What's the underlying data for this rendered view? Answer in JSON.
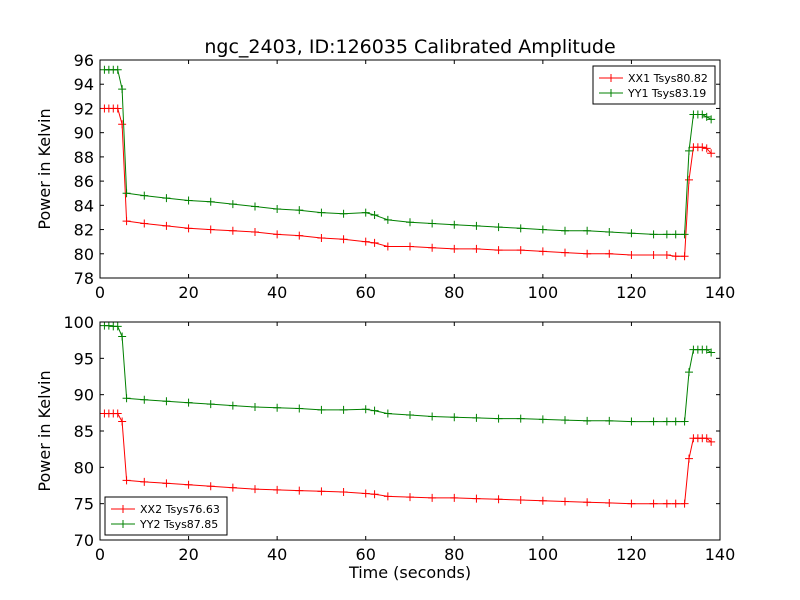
{
  "chart_data": [
    {
      "type": "line",
      "title": "ngc_2403, ID:126035 Calibrated Amplitude",
      "xlabel": "",
      "ylabel": "Power in Kelvin",
      "xlim": [
        0,
        140
      ],
      "ylim": [
        78,
        96
      ],
      "xticks": [
        0,
        20,
        40,
        60,
        80,
        100,
        120,
        140
      ],
      "yticks": [
        78,
        80,
        82,
        84,
        86,
        88,
        90,
        92,
        94,
        96
      ],
      "legend_position": "top-right",
      "grid": false,
      "series": [
        {
          "name": "XX1 Tsys80.82",
          "color": "#ff0000",
          "marker": "+",
          "x": [
            1,
            2,
            3,
            4,
            5,
            6,
            10,
            15,
            20,
            25,
            30,
            35,
            40,
            45,
            50,
            55,
            60,
            62,
            65,
            70,
            75,
            80,
            85,
            90,
            95,
            100,
            105,
            110,
            115,
            120,
            125,
            128,
            130,
            132,
            133,
            134,
            135,
            136,
            137,
            138
          ],
          "y": [
            92.0,
            92.0,
            92.0,
            92.0,
            90.7,
            82.7,
            82.5,
            82.3,
            82.1,
            82.0,
            81.9,
            81.8,
            81.6,
            81.5,
            81.3,
            81.2,
            81.0,
            80.9,
            80.6,
            80.6,
            80.5,
            80.4,
            80.4,
            80.3,
            80.3,
            80.2,
            80.1,
            80.0,
            80.0,
            79.9,
            79.9,
            79.9,
            79.8,
            79.8,
            86.1,
            88.8,
            88.8,
            88.8,
            88.7,
            88.3
          ]
        },
        {
          "name": "YY1 Tsys83.19",
          "color": "#008000",
          "marker": "+",
          "x": [
            1,
            2,
            3,
            4,
            5,
            6,
            10,
            15,
            20,
            25,
            30,
            35,
            40,
            45,
            50,
            55,
            60,
            62,
            65,
            70,
            75,
            80,
            85,
            90,
            95,
            100,
            105,
            110,
            115,
            120,
            125,
            128,
            130,
            132,
            133,
            134,
            135,
            136,
            137,
            138
          ],
          "y": [
            95.2,
            95.2,
            95.2,
            95.2,
            93.6,
            85.0,
            84.8,
            84.6,
            84.4,
            84.3,
            84.1,
            83.9,
            83.7,
            83.6,
            83.4,
            83.3,
            83.4,
            83.2,
            82.8,
            82.6,
            82.5,
            82.4,
            82.3,
            82.2,
            82.1,
            82.0,
            81.9,
            81.9,
            81.8,
            81.7,
            81.6,
            81.6,
            81.6,
            81.6,
            88.5,
            91.5,
            91.5,
            91.5,
            91.3,
            91.1
          ]
        }
      ]
    },
    {
      "type": "line",
      "title": "",
      "xlabel": "Time (seconds)",
      "ylabel": "Power in Kelvin",
      "xlim": [
        0,
        140
      ],
      "ylim": [
        70,
        100
      ],
      "xticks": [
        0,
        20,
        40,
        60,
        80,
        100,
        120,
        140
      ],
      "yticks": [
        70,
        75,
        80,
        85,
        90,
        95,
        100
      ],
      "legend_position": "bottom-left",
      "grid": false,
      "series": [
        {
          "name": "XX2 Tsys76.63",
          "color": "#ff0000",
          "marker": "+",
          "x": [
            1,
            2,
            3,
            4,
            5,
            6,
            10,
            15,
            20,
            25,
            30,
            35,
            40,
            45,
            50,
            55,
            60,
            62,
            65,
            70,
            75,
            80,
            85,
            90,
            95,
            100,
            105,
            110,
            115,
            120,
            125,
            128,
            130,
            132,
            133,
            134,
            135,
            136,
            137,
            138
          ],
          "y": [
            87.4,
            87.4,
            87.4,
            87.4,
            86.3,
            78.2,
            78.0,
            77.8,
            77.6,
            77.4,
            77.2,
            77.0,
            76.9,
            76.8,
            76.7,
            76.6,
            76.4,
            76.3,
            76.0,
            75.9,
            75.8,
            75.8,
            75.7,
            75.6,
            75.5,
            75.4,
            75.3,
            75.2,
            75.1,
            75.0,
            75.0,
            75.0,
            75.0,
            75.0,
            81.2,
            84.0,
            84.0,
            84.0,
            84.0,
            83.5
          ]
        },
        {
          "name": "YY2 Tsys87.85",
          "color": "#008000",
          "marker": "+",
          "x": [
            1,
            2,
            3,
            4,
            5,
            6,
            10,
            15,
            20,
            25,
            30,
            35,
            40,
            45,
            50,
            55,
            60,
            62,
            65,
            70,
            75,
            80,
            85,
            90,
            95,
            100,
            105,
            110,
            115,
            120,
            125,
            128,
            130,
            132,
            133,
            134,
            135,
            136,
            137,
            138
          ],
          "y": [
            99.5,
            99.5,
            99.4,
            99.4,
            98.0,
            89.5,
            89.3,
            89.1,
            88.9,
            88.7,
            88.5,
            88.3,
            88.2,
            88.1,
            87.9,
            87.9,
            88.0,
            87.8,
            87.4,
            87.2,
            87.0,
            86.9,
            86.8,
            86.7,
            86.7,
            86.6,
            86.5,
            86.4,
            86.4,
            86.3,
            86.3,
            86.3,
            86.3,
            86.3,
            93.1,
            96.2,
            96.2,
            96.2,
            96.2,
            95.8
          ]
        }
      ]
    }
  ]
}
